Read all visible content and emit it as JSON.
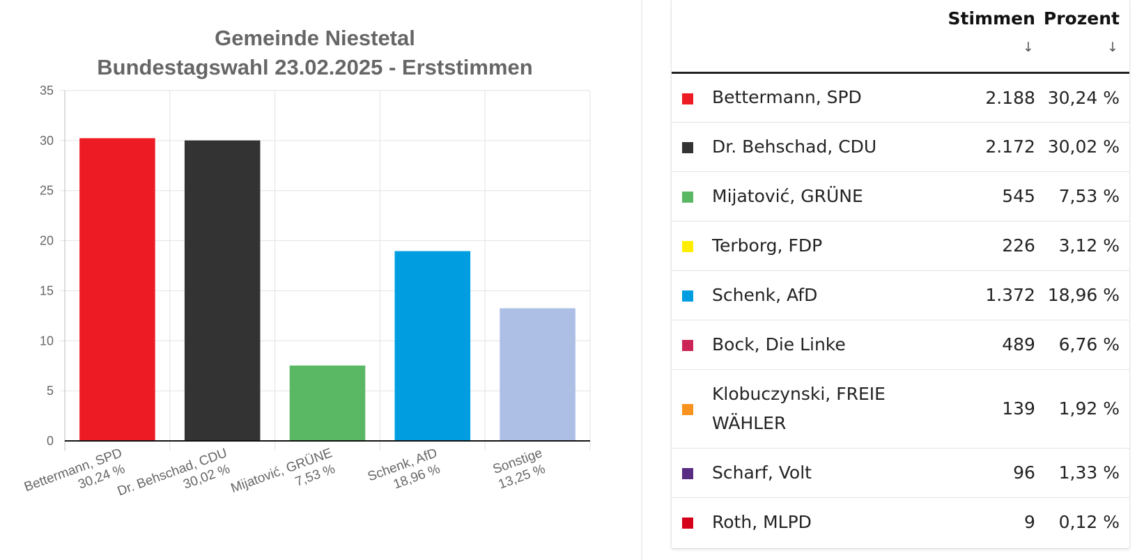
{
  "chart_data": {
    "type": "bar",
    "title_lines": [
      "Gemeinde Niestetal",
      "Bundestagswahl 23.02.2025  - Erststimmen"
    ],
    "categories": [
      {
        "name": "Bettermann, SPD",
        "pct_label": "30,24 %"
      },
      {
        "name": "Dr. Behschad, CDU",
        "pct_label": "30,02 %"
      },
      {
        "name": "Mijatović, GRÜNE",
        "pct_label": "7,53 %"
      },
      {
        "name": "Schenk, AfD",
        "pct_label": "18,96 %"
      },
      {
        "name": "Sonstige",
        "pct_label": "13,25 %"
      }
    ],
    "values": [
      30.24,
      30.02,
      7.53,
      18.96,
      13.25
    ],
    "colors": [
      "#ed1c24",
      "#333333",
      "#5ab763",
      "#009ee0",
      "#adbfe5"
    ],
    "ylim": [
      0,
      35
    ],
    "yticks": [
      0,
      5,
      10,
      15,
      20,
      25,
      30,
      35
    ],
    "grid": true
  },
  "table": {
    "headers": {
      "votes": "Stimmen",
      "percent": "Prozent",
      "sort_icon": "↓"
    },
    "rows": [
      {
        "name": "Bettermann, SPD",
        "votes": "2.188",
        "percent": "30,24 %",
        "color": "#ed1c24"
      },
      {
        "name": "Dr. Behschad, CDU",
        "votes": "2.172",
        "percent": "30,02 %",
        "color": "#333333"
      },
      {
        "name": "Mijatović, GRÜNE",
        "votes": "545",
        "percent": "7,53 %",
        "color": "#5ab763"
      },
      {
        "name": "Terborg, FDP",
        "votes": "226",
        "percent": "3,12 %",
        "color": "#ffed00"
      },
      {
        "name": "Schenk, AfD",
        "votes": "1.372",
        "percent": "18,96 %",
        "color": "#009ee0"
      },
      {
        "name": "Bock, Die Linke",
        "votes": "489",
        "percent": "6,76 %",
        "color": "#cc2456"
      },
      {
        "name": "Klobuczynski, FREIE WÄHLER",
        "votes": "139",
        "percent": "1,92 %",
        "color": "#f7931e"
      },
      {
        "name": "Scharf, Volt",
        "votes": "96",
        "percent": "1,33 %",
        "color": "#582c83"
      },
      {
        "name": "Roth, MLPD",
        "votes": "9",
        "percent": "0,12 %",
        "color": "#d50019"
      }
    ]
  }
}
